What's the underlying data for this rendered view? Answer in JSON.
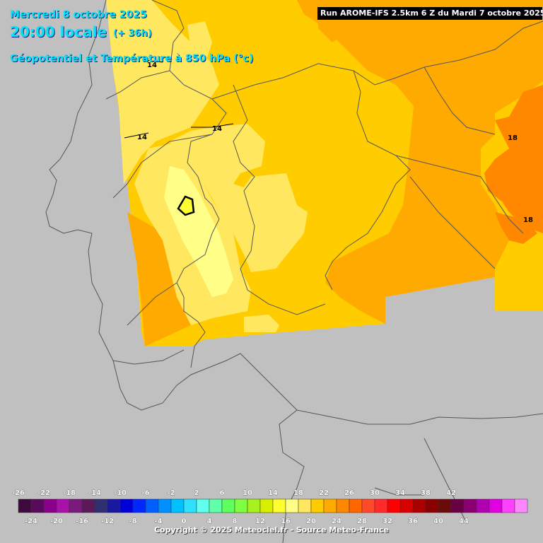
{
  "header": {
    "date": "Mercredi 8 octobre 2025",
    "time": "20:00 locale",
    "lead": "(+ 36h)",
    "parameter": "Géopotentiel et Température à 850 hPa (°c)",
    "run": "Run AROME-IFS 2.5km 6 Z du Mardi 7 octobre 2025"
  },
  "map": {
    "isotherm_labels": [
      "14",
      "14",
      "14",
      "18",
      "18"
    ]
  },
  "legend": {
    "top_labels": [
      "-26",
      "-22",
      "-18",
      "-14",
      "-10",
      "-6",
      "-2",
      "2",
      "6",
      "10",
      "14",
      "18",
      "22",
      "26",
      "30",
      "34",
      "38",
      "42"
    ],
    "bottom_labels": [
      "-24",
      "-20",
      "-16",
      "-12",
      "-8",
      "-4",
      "0",
      "4",
      "8",
      "12",
      "16",
      "20",
      "24",
      "28",
      "32",
      "36",
      "40",
      "44"
    ],
    "colors": [
      "#3c0a3c",
      "#5a0a5a",
      "#8a008a",
      "#aa10aa",
      "#7a1a7a",
      "#5a1a5a",
      "#303070",
      "#1818a0",
      "#0000d8",
      "#0028ff",
      "#0060ff",
      "#0090ff",
      "#00c0ff",
      "#30e0ff",
      "#60ffee",
      "#60ffaa",
      "#60ff60",
      "#80ff40",
      "#a8f020",
      "#d8f000",
      "#ffff30",
      "#ffff88",
      "#ffe860",
      "#ffcc00",
      "#ffaa00",
      "#ff8800",
      "#ff6600",
      "#ff4a2a",
      "#ff2a2a",
      "#ff0000",
      "#d80000",
      "#aa0000",
      "#8a0000",
      "#6a0a0a",
      "#6a0044",
      "#8a0070",
      "#b000b0",
      "#e000e0",
      "#ff40ff",
      "#ff88ff"
    ]
  },
  "footer": {
    "copyright": "Copyright © 2025 Meteociel.fr - Source Meteo-France"
  }
}
